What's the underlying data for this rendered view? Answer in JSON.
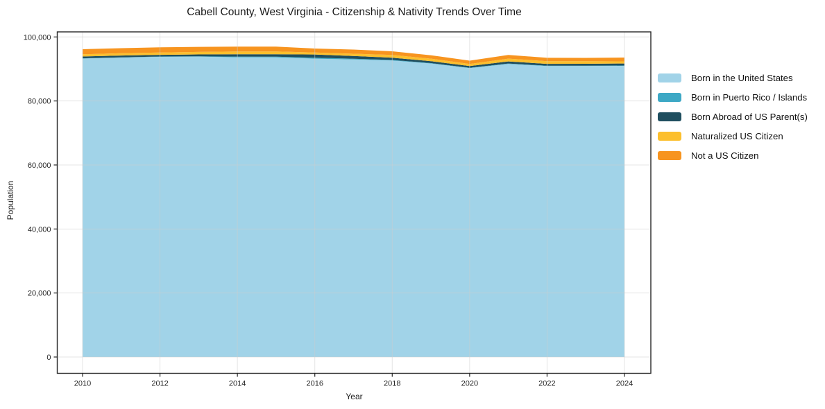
{
  "chart_data": {
    "type": "area",
    "stacked": true,
    "title": "Cabell County, West Virginia - Citizenship & Nativity Trends Over Time",
    "xlabel": "Year",
    "ylabel": "Population",
    "grid": true,
    "legend_position": "right-outside",
    "xlim": [
      2009.35,
      2024.68
    ],
    "ylim": [
      0,
      101500
    ],
    "x": [
      2010,
      2011,
      2012,
      2013,
      2014,
      2015,
      2016,
      2017,
      2018,
      2019,
      2020,
      2021,
      2022,
      2023,
      2024
    ],
    "xticks": [
      2010,
      2012,
      2014,
      2016,
      2018,
      2020,
      2022,
      2024
    ],
    "xtick_labels": [
      "2010",
      "2012",
      "2014",
      "2016",
      "2018",
      "2020",
      "2022",
      "2024"
    ],
    "yticks": [
      0,
      20000,
      40000,
      60000,
      80000,
      100000
    ],
    "ytick_labels": [
      "0",
      "20,000",
      "40,000",
      "60,000",
      "80,000",
      "100,000"
    ],
    "series": [
      {
        "name": "Born in the United States",
        "color": "#a1d3e8",
        "values": [
          93250,
          93550,
          93800,
          93820,
          93650,
          93640,
          93210,
          92950,
          92640,
          91700,
          90260,
          91550,
          90900,
          90940,
          90980
        ]
      },
      {
        "name": "Born in Puerto Rico / Islands",
        "color": "#3da8c5",
        "values": [
          80,
          90,
          100,
          130,
          210,
          190,
          320,
          250,
          160,
          130,
          100,
          160,
          120,
          100,
          90
        ]
      },
      {
        "name": "Born Abroad of US Parent(s)",
        "color": "#1f4e5f",
        "values": [
          570,
          560,
          520,
          600,
          730,
          750,
          1000,
          850,
          700,
          620,
          560,
          650,
          570,
          580,
          640
        ]
      },
      {
        "name": "Naturalized US Citizen",
        "color": "#fcbf2d",
        "values": [
          680,
          700,
          720,
          780,
          870,
          900,
          600,
          700,
          870,
          760,
          650,
          870,
          860,
          790,
          660
        ]
      },
      {
        "name": "Not a US Citizen",
        "color": "#f7941f",
        "values": [
          1590,
          1600,
          1630,
          1570,
          1510,
          1480,
          1250,
          1300,
          1150,
          1080,
          1020,
          1150,
          1020,
          1040,
          1200
        ]
      }
    ]
  }
}
